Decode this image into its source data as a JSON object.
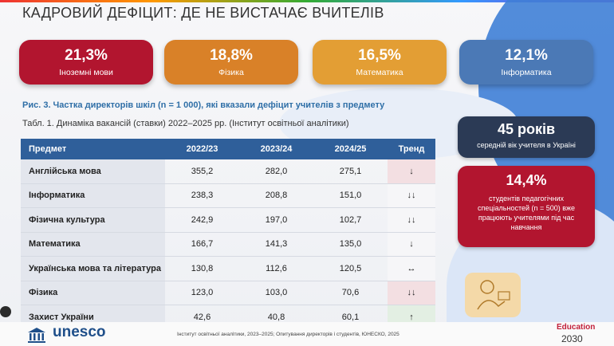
{
  "title": "КАДРОВИЙ ДЕФІЦИТ: ДЕ НЕ ВИСТАЧАЄ ВЧИТЕЛІВ",
  "kpis": [
    {
      "value": "21,3%",
      "label": "Іноземні мови",
      "color": "#b2152f"
    },
    {
      "value": "18,8%",
      "label": "Фізика",
      "color": "#d98128"
    },
    {
      "value": "16,5%",
      "label": "Математика",
      "color": "#e39e34"
    },
    {
      "value": "12,1%",
      "label": "Інформатика",
      "color": "#4b79b6"
    }
  ],
  "figure_caption": "Рис. 3. Частка директорів шкіл (n = 1 000), які вказали дефіцит учителів з предмету",
  "table_caption": "Табл. 1. Динаміка вакансій (ставки) 2022–2025 рр. (Інститут освітньої аналітики)",
  "table": {
    "headers": [
      "Предмет",
      "2022/23",
      "2023/24",
      "2024/25",
      "Тренд"
    ],
    "rows": [
      {
        "subject": "Англійська мова",
        "v1": "355,2",
        "v2": "282,0",
        "v3": "275,1",
        "trend": "↓",
        "trend_kind": "bad"
      },
      {
        "subject": "Інформатика",
        "v1": "238,3",
        "v2": "208,8",
        "v3": "151,0",
        "trend": "↓↓",
        "trend_kind": "neutral"
      },
      {
        "subject": "Фізична культура",
        "v1": "242,9",
        "v2": "197,0",
        "v3": "102,7",
        "trend": "↓↓",
        "trend_kind": "neutral"
      },
      {
        "subject": "Математика",
        "v1": "166,7",
        "v2": "141,3",
        "v3": "135,0",
        "trend": "↓",
        "trend_kind": "neutral"
      },
      {
        "subject": "Українська мова та література",
        "v1": "130,8",
        "v2": "112,6",
        "v3": "120,5",
        "trend": "↔",
        "trend_kind": "neutral"
      },
      {
        "subject": "Фізика",
        "v1": "123,0",
        "v2": "103,0",
        "v3": "70,6",
        "trend": "↓↓",
        "trend_kind": "bad"
      },
      {
        "subject": "Захист України",
        "v1": "42,6",
        "v2": "40,8",
        "v3": "60,1",
        "trend": "↑",
        "trend_kind": "good"
      }
    ]
  },
  "age_card": {
    "value": "45 років",
    "label": "середній вік учителя в Україні"
  },
  "students_card": {
    "value": "14,4%",
    "label": "студентів педагогічних спеціальностей (n = 500) вже працюють учителями під час навчання"
  },
  "footer": {
    "logo_text": "unesco",
    "source": "Інститут освітньої аналітики, 2023–2025; Опитування директорів і студентів, ЮНЕСКО, 2025",
    "edu_top": "Education",
    "edu_bottom": "2030"
  }
}
